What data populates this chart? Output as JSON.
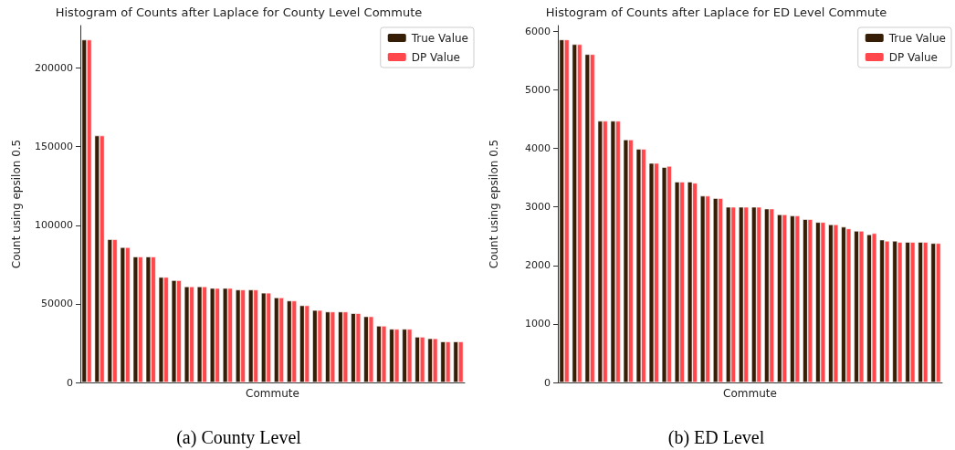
{
  "chart_data": [
    {
      "type": "bar",
      "title": "Histogram of Counts after Laplace for County Level Commute",
      "xlabel": "Commute",
      "ylabel": "Count using epsilon 0.5",
      "annotations": [
        "(a) County Level"
      ],
      "categories": [
        null,
        null,
        null,
        null,
        null,
        null,
        null,
        null,
        null,
        null,
        null,
        null,
        null,
        null,
        null,
        null,
        null,
        null,
        null,
        null,
        null,
        null,
        null,
        null,
        null,
        null,
        null,
        null,
        null,
        null
      ],
      "series": [
        {
          "name": "True Value",
          "color": "#361d05",
          "values": [
            218000,
            157000,
            91000,
            86000,
            80000,
            80000,
            67000,
            65000,
            61000,
            61000,
            60000,
            60000,
            59000,
            59000,
            57000,
            54000,
            52000,
            49000,
            46000,
            45000,
            45000,
            44000,
            42000,
            36000,
            34000,
            34000,
            29000,
            28000,
            26000,
            26000
          ]
        },
        {
          "name": "DP Value",
          "color": "#ff474c",
          "values": [
            218000,
            157000,
            91000,
            86000,
            80000,
            80000,
            67000,
            65000,
            61000,
            61000,
            60000,
            60000,
            59000,
            59000,
            57000,
            54000,
            52000,
            49000,
            46000,
            45000,
            45000,
            44000,
            42000,
            36000,
            34000,
            34000,
            29000,
            28000,
            26000,
            26000
          ]
        }
      ],
      "ylim": [
        0,
        227000
      ],
      "yticks": [
        0,
        50000,
        100000,
        150000,
        200000
      ],
      "tick_labels": "y",
      "grid": false,
      "legend": "top right"
    },
    {
      "type": "bar",
      "title": "Histogram of Counts after Laplace for ED Level Commute",
      "xlabel": "Commute",
      "ylabel": "Count using epsilon 0.5",
      "annotations": [
        "(b) ED Level"
      ],
      "categories": [
        null,
        null,
        null,
        null,
        null,
        null,
        null,
        null,
        null,
        null,
        null,
        null,
        null,
        null,
        null,
        null,
        null,
        null,
        null,
        null,
        null,
        null,
        null,
        null,
        null,
        null,
        null,
        null,
        null,
        null
      ],
      "series": [
        {
          "name": "True Value",
          "color": "#361d05",
          "values": [
            5860,
            5780,
            5610,
            4470,
            4470,
            4150,
            3990,
            3750,
            3680,
            3430,
            3430,
            3190,
            3150,
            3000,
            3000,
            3000,
            2970,
            2870,
            2850,
            2790,
            2740,
            2700,
            2660,
            2590,
            2530,
            2440,
            2420,
            2400,
            2400,
            2380
          ]
        },
        {
          "name": "DP Value",
          "color": "#ff474c",
          "values": [
            5860,
            5780,
            5610,
            4470,
            4470,
            4150,
            3990,
            3750,
            3700,
            3430,
            3410,
            3190,
            3150,
            3000,
            3000,
            3000,
            2970,
            2870,
            2850,
            2790,
            2740,
            2700,
            2630,
            2590,
            2550,
            2420,
            2400,
            2400,
            2400,
            2380
          ]
        }
      ],
      "ylim": [
        0,
        6100
      ],
      "yticks": [
        0,
        1000,
        2000,
        3000,
        4000,
        5000,
        6000
      ],
      "tick_labels": "y",
      "grid": false,
      "legend": "top right"
    }
  ]
}
